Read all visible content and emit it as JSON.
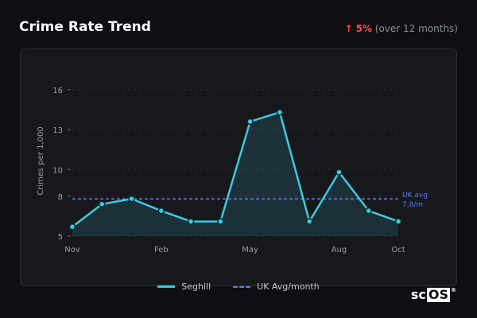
{
  "header": {
    "title": "Crime Rate Trend",
    "trend_arrow": "↑",
    "trend_pct": "5%",
    "trend_note": "(over 12 months)"
  },
  "legend": {
    "series_label": "Seghill",
    "avg_label": "UK Avg/month"
  },
  "brand": {
    "sc": "sc",
    "os": "OS",
    "reg": "®"
  },
  "colors": {
    "series": "#3ec9e0",
    "average": "#5b7cff",
    "increase": "#ff4d4f"
  },
  "chart_data": {
    "type": "line",
    "ylabel": "Crimes per 1,000",
    "x_ticks": [
      "Nov",
      "Feb",
      "May",
      "Aug",
      "Oct"
    ],
    "x_tick_index": [
      0,
      3,
      6,
      9,
      11
    ],
    "y_ticks": [
      5,
      8,
      10,
      13,
      16
    ],
    "ylim": [
      5,
      17
    ],
    "series": [
      {
        "name": "Seghill",
        "values": [
          5.7,
          7.4,
          7.8,
          6.9,
          6.1,
          6.1,
          13.6,
          14.3,
          6.1,
          9.8,
          6.9,
          6.1
        ]
      }
    ],
    "reference_line": {
      "name": "UK Avg/month",
      "value": 7.8,
      "annotation": "UK avg",
      "annotation_value": "7.8/m"
    },
    "grid": true
  }
}
